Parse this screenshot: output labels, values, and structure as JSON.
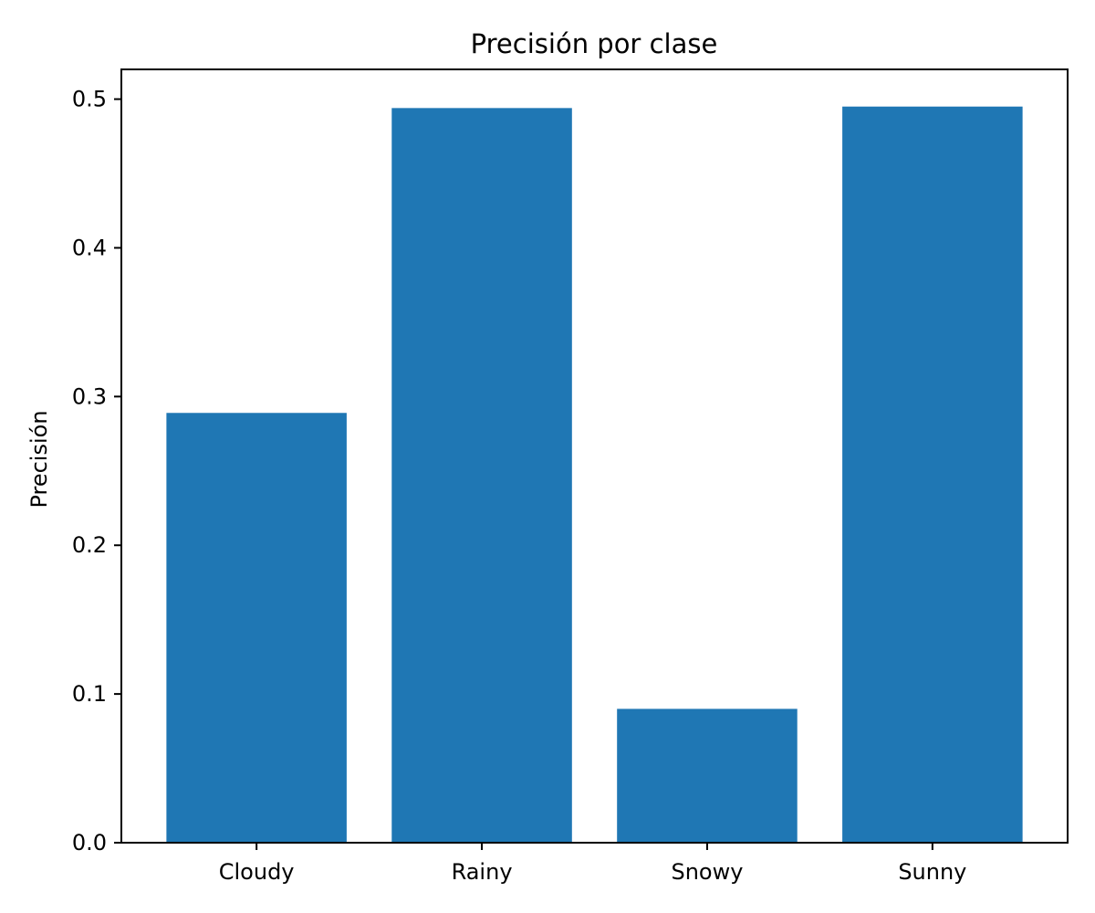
{
  "chart_data": {
    "type": "bar",
    "title": "Precisión por clase",
    "xlabel": "",
    "ylabel": "Precisión",
    "categories": [
      "Cloudy",
      "Rainy",
      "Snowy",
      "Sunny"
    ],
    "values": [
      0.289,
      0.494,
      0.09,
      0.495
    ],
    "ylim": [
      0,
      0.52
    ],
    "yticks": [
      0.0,
      0.1,
      0.2,
      0.3,
      0.4,
      0.5
    ],
    "ytick_labels": [
      "0.0",
      "0.1",
      "0.2",
      "0.3",
      "0.4",
      "0.5"
    ],
    "bar_color": "#1f77b4",
    "grid": false,
    "legend": "none"
  }
}
